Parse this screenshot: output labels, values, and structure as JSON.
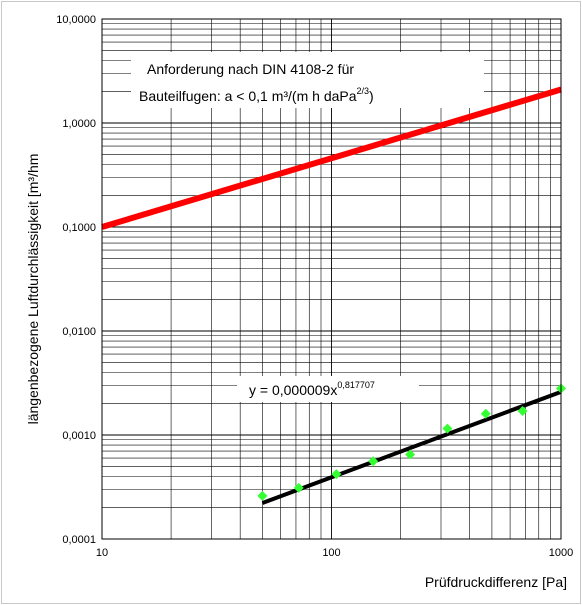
{
  "chart_data": {
    "type": "scatter",
    "x_scale": "log",
    "y_scale": "log",
    "xlim": [
      10,
      1000
    ],
    "ylim": [
      0.0001,
      10
    ],
    "xlabel": "Prüfdruckdifferenz [Pa]",
    "ylabel": "längenbezogene Luftdurchlässigkeit [m³/hm",
    "x_ticks": [
      "10",
      "100",
      "1000"
    ],
    "y_ticks": [
      "0,0001",
      "0,0010",
      "0,0100",
      "0,1000",
      "1,0000",
      "10,0000"
    ],
    "grid": true,
    "series": [
      {
        "kind": "points",
        "marker": "diamond",
        "color": "#33ff33",
        "x": [
          50,
          72,
          105,
          152,
          220,
          320,
          470,
          680,
          1000
        ],
        "y": [
          0.00026,
          0.00031,
          0.00042,
          0.00056,
          0.00065,
          0.00115,
          0.0016,
          0.0017,
          0.0028
        ]
      },
      {
        "kind": "fit-line",
        "color": "#000000",
        "x": [
          50,
          1000
        ],
        "y": [
          0.000222,
          0.0026
        ]
      },
      {
        "kind": "requirement-line",
        "color": "#ff0000",
        "x": [
          10,
          1000
        ],
        "y": [
          0.1,
          2.1
        ]
      }
    ],
    "annotations": {
      "requirement_line1": "Anforderung nach DIN 4108-2 für",
      "requirement_line2_base": "Bauteilfugen: a < 0,1 m³/(m h daPa",
      "requirement_line2_sup": "2/3",
      "requirement_line2_end": ")",
      "equation_base": "y = 0,000009x",
      "equation_sup": "0,817707"
    }
  }
}
